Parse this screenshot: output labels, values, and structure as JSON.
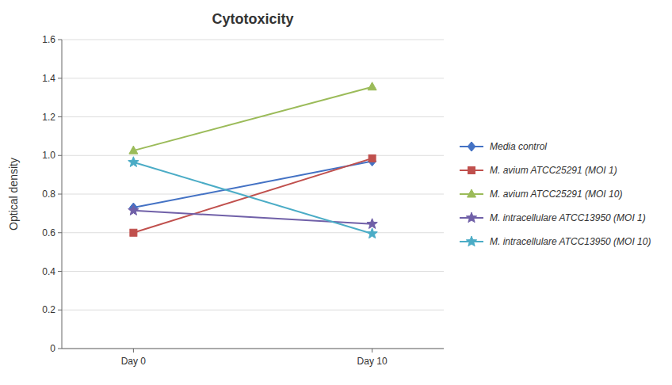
{
  "chart_data": {
    "type": "line",
    "title": "Cytotoxicity",
    "y_label": "Optical density",
    "categories": [
      "Day 0",
      "Day 10"
    ],
    "ylim": [
      0,
      1.6
    ],
    "yticks": [
      0,
      0.2,
      0.4,
      0.6,
      0.8,
      {
        "value": 1.0,
        "label": "1.0"
      },
      1.2,
      1.4,
      1.6
    ],
    "grid": true,
    "legend": "right",
    "series": [
      {
        "name": "Media control",
        "color": "#4472C4",
        "marker": "diamond",
        "line_style": "solid",
        "values": [
          0.73,
          0.97
        ]
      },
      {
        "name": "M. avium ATCC25291 (MOI 1)",
        "color": "#C0504D",
        "marker": "square",
        "line_style": "solid",
        "values": [
          0.6,
          0.985
        ]
      },
      {
        "name": "M. avium ATCC25291 (MOI 10)",
        "color": "#9BBB59",
        "marker": "triangle",
        "line_style": "solid",
        "values": [
          1.025,
          1.355
        ]
      },
      {
        "name": "M. intracellulare ATCC13950 (MOI 1)",
        "color": "#7060A8",
        "marker": "star",
        "line_style": "solid",
        "values": [
          0.715,
          0.645
        ]
      },
      {
        "name": "M. intracellulare ATCC13950 (MOI 10)",
        "color": "#4BACC6",
        "marker": "star",
        "line_style": "solid",
        "values": [
          0.965,
          0.595
        ]
      }
    ]
  }
}
